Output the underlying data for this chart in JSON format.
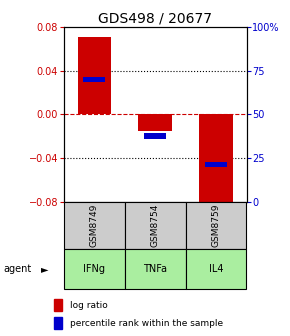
{
  "title": "GDS498 / 20677",
  "samples": [
    "GSM8749",
    "GSM8754",
    "GSM8759"
  ],
  "agents": [
    "IFNg",
    "TNFa",
    "IL4"
  ],
  "log_ratios": [
    0.071,
    -0.015,
    -0.085
  ],
  "percentile_ranks": [
    0.032,
    -0.02,
    -0.046
  ],
  "ylim": [
    -0.08,
    0.08
  ],
  "yticks_left": [
    -0.08,
    -0.04,
    0,
    0.04,
    0.08
  ],
  "yticks_right": [
    0,
    25,
    50,
    75,
    100
  ],
  "bar_color": "#cc0000",
  "percentile_color": "#0000cc",
  "zero_line_color": "#cc0000",
  "grid_color": "#000000",
  "sample_box_color": "#cccccc",
  "agent_box_color": "#aaeea0",
  "bar_width": 0.55,
  "title_fontsize": 10,
  "tick_fontsize": 7,
  "legend_fontsize": 6.5
}
